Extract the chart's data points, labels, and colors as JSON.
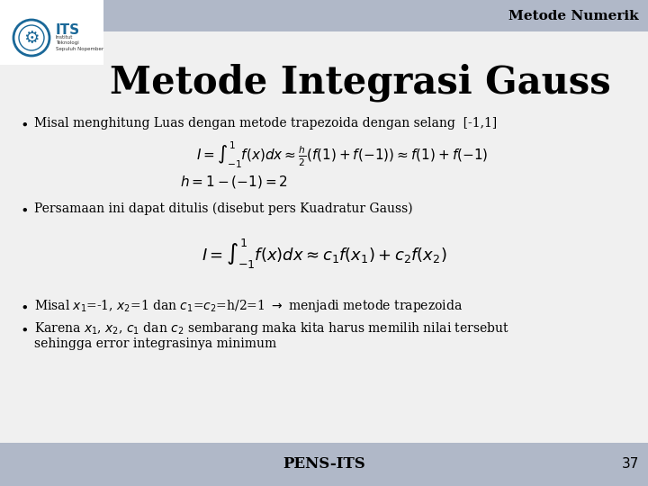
{
  "title": "Metode Integrasi Gauss",
  "header_text": "Metode Numerik",
  "header_bg": "#b0b8c8",
  "slide_bg": "#f0f0f0",
  "title_color": "#000000",
  "header_color": "#000000",
  "footer_text": "PENS-ITS",
  "footer_number": "37",
  "bullet1": "Misal menghitung Luas dengan metode trapezoida dengan selang  [-1,1]",
  "bullet2": "Persamaan ini dapat ditulis (disebut pers Kuadratur Gauss)",
  "bullet4a": "Karena $x_1$, $x_2$, $c_1$ dan $c_2$ sembarang maka kita harus memilih nilai tersebut",
  "bullet4b": "sehingga error integrasinya minimum",
  "logo_color": "#1a6898",
  "accent_color": "#1a6898"
}
